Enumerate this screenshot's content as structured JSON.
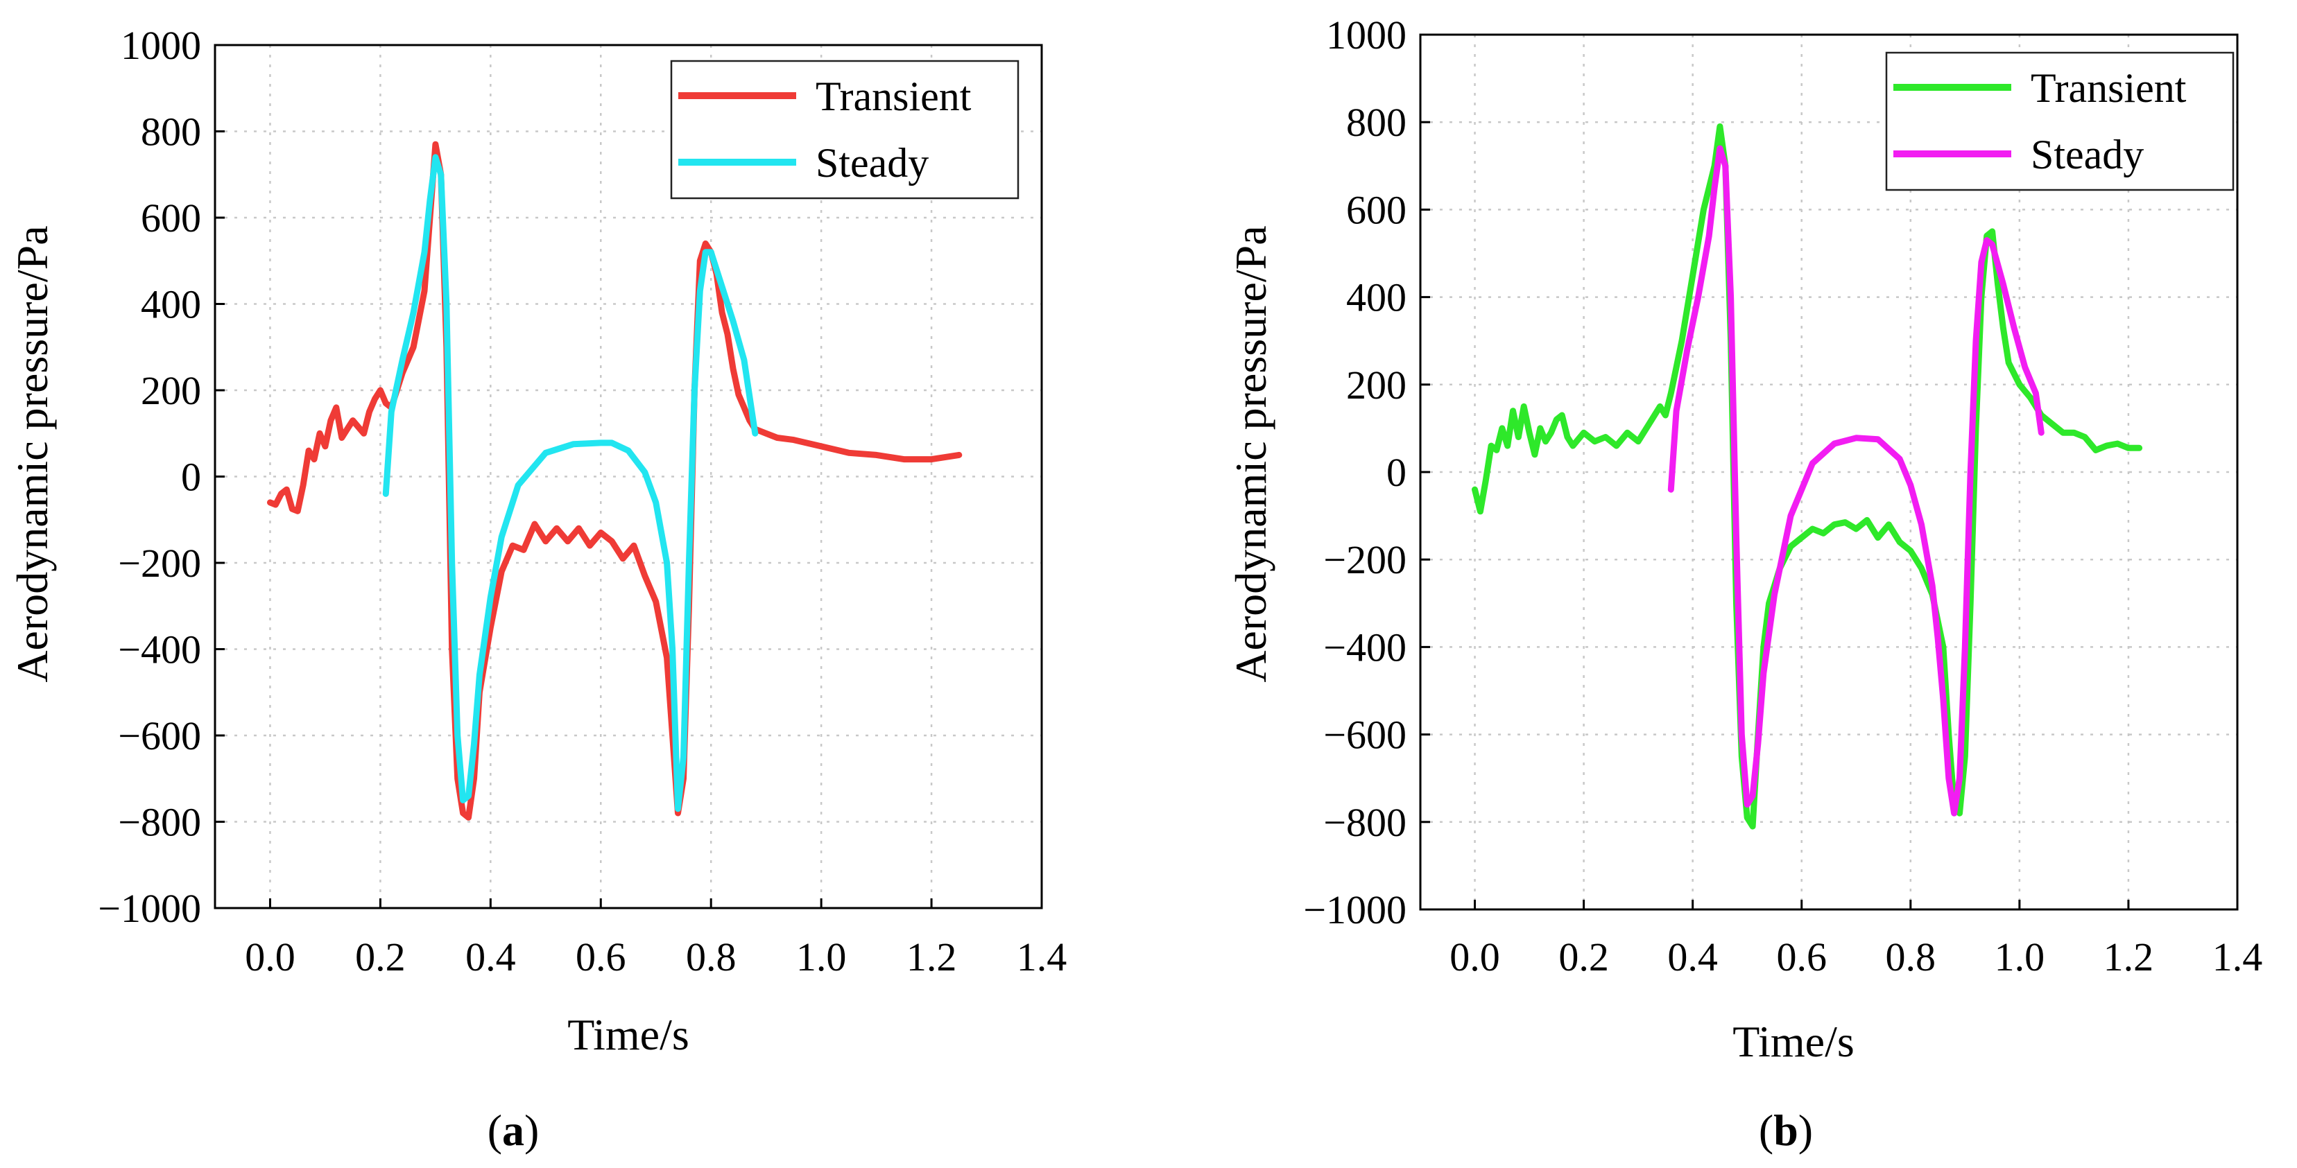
{
  "chart_data": [
    {
      "type": "line",
      "panel_label": "(a)",
      "panel_letter": "a",
      "title": "",
      "xlabel": "Time/s",
      "ylabel": "Aerodynamic pressure/Pa",
      "xlim": [
        -0.1,
        1.4
      ],
      "ylim": [
        -1000,
        1000
      ],
      "xticks": [
        "0.0",
        "0.2",
        "0.4",
        "0.6",
        "0.8",
        "1.0",
        "1.2",
        "1.4"
      ],
      "yticks": [
        "1000",
        "800",
        "600",
        "400",
        "200",
        "0",
        "−200",
        "−400",
        "−600",
        "−800",
        "−1000"
      ],
      "grid": true,
      "legend_position": "top-right",
      "series": [
        {
          "name": "Transient",
          "color": "#ef3b36",
          "x": [
            0.0,
            0.01,
            0.02,
            0.03,
            0.04,
            0.05,
            0.06,
            0.07,
            0.08,
            0.09,
            0.1,
            0.11,
            0.12,
            0.13,
            0.14,
            0.15,
            0.16,
            0.17,
            0.18,
            0.19,
            0.2,
            0.21,
            0.22,
            0.24,
            0.26,
            0.28,
            0.3,
            0.31,
            0.32,
            0.33,
            0.34,
            0.35,
            0.36,
            0.37,
            0.38,
            0.4,
            0.42,
            0.44,
            0.46,
            0.48,
            0.5,
            0.52,
            0.54,
            0.56,
            0.58,
            0.6,
            0.62,
            0.64,
            0.66,
            0.68,
            0.7,
            0.72,
            0.73,
            0.74,
            0.75,
            0.76,
            0.77,
            0.78,
            0.79,
            0.8,
            0.81,
            0.82,
            0.83,
            0.84,
            0.85,
            0.86,
            0.87,
            0.88,
            0.9,
            0.92,
            0.95,
            1.0,
            1.05,
            1.1,
            1.15,
            1.2,
            1.25
          ],
          "y": [
            -60,
            -65,
            -40,
            -30,
            -75,
            -80,
            -20,
            60,
            40,
            100,
            70,
            130,
            160,
            90,
            110,
            130,
            115,
            100,
            150,
            180,
            200,
            170,
            160,
            240,
            300,
            430,
            770,
            700,
            300,
            -400,
            -700,
            -780,
            -790,
            -700,
            -500,
            -350,
            -220,
            -160,
            -170,
            -110,
            -150,
            -120,
            -150,
            -120,
            -160,
            -130,
            -150,
            -190,
            -160,
            -230,
            -290,
            -420,
            -600,
            -780,
            -700,
            -300,
            200,
            500,
            540,
            520,
            470,
            380,
            330,
            250,
            190,
            160,
            130,
            110,
            100,
            90,
            85,
            70,
            55,
            50,
            40,
            40,
            50
          ]
        },
        {
          "name": "Steady",
          "color": "#22e5f0",
          "x": [
            0.21,
            0.22,
            0.24,
            0.26,
            0.28,
            0.29,
            0.3,
            0.31,
            0.32,
            0.33,
            0.34,
            0.35,
            0.36,
            0.37,
            0.38,
            0.4,
            0.42,
            0.45,
            0.5,
            0.55,
            0.6,
            0.62,
            0.65,
            0.68,
            0.7,
            0.72,
            0.73,
            0.74,
            0.75,
            0.76,
            0.77,
            0.78,
            0.79,
            0.8,
            0.82,
            0.84,
            0.86,
            0.88
          ],
          "y": [
            -40,
            150,
            270,
            380,
            520,
            640,
            740,
            700,
            400,
            -200,
            -600,
            -750,
            -740,
            -620,
            -460,
            -280,
            -140,
            -20,
            55,
            75,
            78,
            78,
            60,
            10,
            -60,
            -200,
            -400,
            -770,
            -650,
            -200,
            200,
            430,
            520,
            520,
            440,
            360,
            270,
            100
          ]
        }
      ]
    },
    {
      "type": "line",
      "panel_label": "(b)",
      "panel_letter": "b",
      "title": "",
      "xlabel": "Time/s",
      "ylabel": "Aerodynamic pressure/Pa",
      "xlim": [
        -0.1,
        1.4
      ],
      "ylim": [
        -1000,
        1000
      ],
      "xticks": [
        "0.0",
        "0.2",
        "0.4",
        "0.6",
        "0.8",
        "1.0",
        "1.2",
        "1.4"
      ],
      "yticks": [
        "1000",
        "800",
        "600",
        "400",
        "200",
        "0",
        "−200",
        "−400",
        "−600",
        "−800",
        "−1000"
      ],
      "grid": true,
      "legend_position": "top-right",
      "series": [
        {
          "name": "Transient",
          "color": "#2ee82a",
          "x": [
            0.0,
            0.01,
            0.02,
            0.03,
            0.04,
            0.05,
            0.06,
            0.07,
            0.08,
            0.09,
            0.1,
            0.11,
            0.12,
            0.13,
            0.14,
            0.15,
            0.16,
            0.17,
            0.18,
            0.2,
            0.22,
            0.24,
            0.26,
            0.28,
            0.3,
            0.32,
            0.34,
            0.35,
            0.36,
            0.38,
            0.4,
            0.42,
            0.44,
            0.45,
            0.46,
            0.47,
            0.48,
            0.49,
            0.5,
            0.51,
            0.52,
            0.53,
            0.54,
            0.56,
            0.58,
            0.6,
            0.62,
            0.64,
            0.66,
            0.68,
            0.7,
            0.72,
            0.74,
            0.76,
            0.78,
            0.8,
            0.82,
            0.84,
            0.86,
            0.87,
            0.88,
            0.89,
            0.9,
            0.91,
            0.92,
            0.93,
            0.94,
            0.95,
            0.96,
            0.97,
            0.98,
            1.0,
            1.02,
            1.04,
            1.06,
            1.08,
            1.1,
            1.12,
            1.14,
            1.16,
            1.18,
            1.2,
            1.22
          ],
          "y": [
            -40,
            -90,
            -20,
            60,
            50,
            100,
            60,
            140,
            80,
            150,
            90,
            40,
            100,
            70,
            90,
            120,
            130,
            80,
            60,
            90,
            70,
            80,
            60,
            90,
            70,
            110,
            150,
            130,
            180,
            300,
            450,
            600,
            700,
            790,
            700,
            300,
            -300,
            -650,
            -790,
            -810,
            -600,
            -400,
            -300,
            -220,
            -170,
            -150,
            -130,
            -140,
            -120,
            -115,
            -130,
            -110,
            -150,
            -120,
            -160,
            -180,
            -220,
            -280,
            -400,
            -600,
            -760,
            -780,
            -650,
            -300,
            100,
            400,
            540,
            550,
            430,
            330,
            250,
            200,
            170,
            130,
            110,
            90,
            90,
            80,
            50,
            60,
            65,
            55,
            55
          ]
        },
        {
          "name": "Steady",
          "color": "#f21df2",
          "x": [
            0.36,
            0.37,
            0.39,
            0.41,
            0.43,
            0.44,
            0.45,
            0.46,
            0.47,
            0.48,
            0.49,
            0.5,
            0.51,
            0.52,
            0.53,
            0.55,
            0.58,
            0.62,
            0.66,
            0.7,
            0.74,
            0.78,
            0.8,
            0.82,
            0.84,
            0.85,
            0.86,
            0.87,
            0.88,
            0.89,
            0.9,
            0.91,
            0.92,
            0.93,
            0.94,
            0.95,
            0.97,
            0.99,
            1.01,
            1.03,
            1.04
          ],
          "y": [
            -40,
            140,
            280,
            400,
            540,
            650,
            740,
            700,
            400,
            -150,
            -600,
            -760,
            -740,
            -620,
            -460,
            -280,
            -100,
            20,
            65,
            78,
            75,
            30,
            -30,
            -120,
            -260,
            -380,
            -520,
            -700,
            -780,
            -700,
            -400,
            0,
            300,
            480,
            530,
            520,
            430,
            330,
            240,
            180,
            90
          ]
        }
      ]
    }
  ]
}
